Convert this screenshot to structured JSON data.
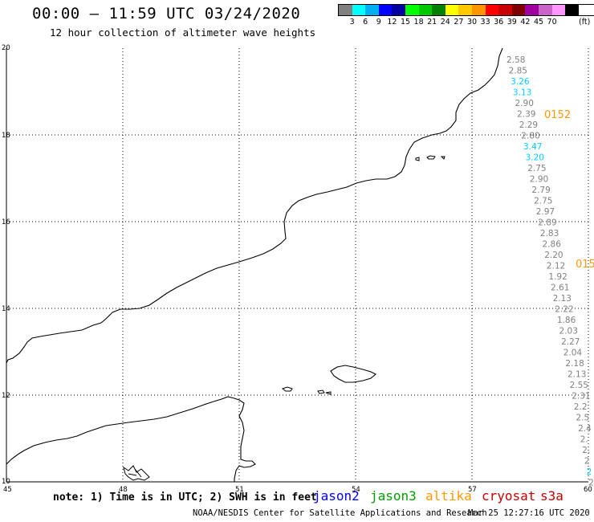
{
  "header": {
    "title": "00:00 – 11:59 UTC 03/24/2020",
    "subtitle": "12 hour collection of altimeter wave heights"
  },
  "legend": {
    "unit": "(ft)",
    "colors": [
      "#808080",
      "#00ffff",
      "#00b0f0",
      "#0000ff",
      "#0000a0",
      "#00ff00",
      "#00c800",
      "#008000",
      "#ffff00",
      "#ffc800",
      "#ff9600",
      "#ff0000",
      "#c80000",
      "#800000",
      "#a000a0",
      "#c864c8",
      "#ff96ff",
      "#000000"
    ],
    "labels": [
      "3",
      "6",
      "9",
      "12",
      "15",
      "18",
      "21",
      "24",
      "27",
      "30",
      "33",
      "36",
      "39",
      "42",
      "45",
      "70"
    ]
  },
  "axes": {
    "x_ticks": [
      "45",
      "48",
      "51",
      "54",
      "57",
      "60"
    ],
    "y_ticks": [
      "20",
      "18",
      "16",
      "14",
      "12",
      "10"
    ]
  },
  "pass_labels": [
    {
      "text": "0152",
      "color": "#ff9900"
    },
    {
      "text": "015",
      "color": "#ff9900"
    }
  ],
  "track1": [
    {
      "v": "2.58",
      "c": "#808080"
    },
    {
      "v": "2.85",
      "c": "#808080"
    },
    {
      "v": "3.26",
      "c": "#00d0ff"
    },
    {
      "v": "3.13",
      "c": "#00d0ff"
    },
    {
      "v": "2.90",
      "c": "#808080"
    },
    {
      "v": "2.39",
      "c": "#808080"
    },
    {
      "v": "2.29",
      "c": "#808080"
    },
    {
      "v": "2.80",
      "c": "#808080"
    },
    {
      "v": "3.47",
      "c": "#00d0ff"
    },
    {
      "v": "3.20",
      "c": "#00d0ff"
    },
    {
      "v": "2.75",
      "c": "#808080"
    },
    {
      "v": "2.90",
      "c": "#808080"
    },
    {
      "v": "2.79",
      "c": "#808080"
    },
    {
      "v": "2.75",
      "c": "#808080"
    },
    {
      "v": "2.97",
      "c": "#808080"
    },
    {
      "v": "2.89",
      "c": "#808080"
    },
    {
      "v": "2.83",
      "c": "#808080"
    },
    {
      "v": "2.86",
      "c": "#808080"
    },
    {
      "v": "2.20",
      "c": "#808080"
    },
    {
      "v": "2.12",
      "c": "#808080"
    },
    {
      "v": "1.92",
      "c": "#808080"
    },
    {
      "v": "2.61",
      "c": "#808080"
    },
    {
      "v": "2.13",
      "c": "#808080"
    },
    {
      "v": "2.22",
      "c": "#808080"
    },
    {
      "v": "1.86",
      "c": "#808080"
    },
    {
      "v": "2.03",
      "c": "#808080"
    },
    {
      "v": "2.27",
      "c": "#808080"
    },
    {
      "v": "2.04",
      "c": "#808080"
    },
    {
      "v": "2.18",
      "c": "#808080"
    },
    {
      "v": "2.13",
      "c": "#808080"
    },
    {
      "v": "2.55",
      "c": "#808080"
    },
    {
      "v": "2.31",
      "c": "#808080"
    },
    {
      "v": "2.2",
      "c": "#808080"
    },
    {
      "v": "2.5",
      "c": "#808080"
    },
    {
      "v": "2.4",
      "c": "#808080"
    },
    {
      "v": "2.",
      "c": "#808080"
    },
    {
      "v": "2.",
      "c": "#808080"
    },
    {
      "v": "2",
      "c": "#808080"
    },
    {
      "v": "2",
      "c": "#00d0ff"
    },
    {
      "v": "2",
      "c": "#808080"
    }
  ],
  "footer": {
    "note": "note: 1) Time is in UTC; 2) SWH is in feet",
    "satellites": [
      {
        "name": "jason2",
        "color": "#0000ff"
      },
      {
        "name": "jason3",
        "color": "#00a000"
      },
      {
        "name": "altika",
        "color": "#ff9900"
      },
      {
        "name": "cryosat",
        "color": "#c80000"
      },
      {
        "name": "s3a",
        "color": "#c80000"
      }
    ],
    "credit": "NOAA/NESDIS Center for Satellite Applications and Research",
    "generated": "Mar 25 12:27:16 UTC 2020"
  }
}
